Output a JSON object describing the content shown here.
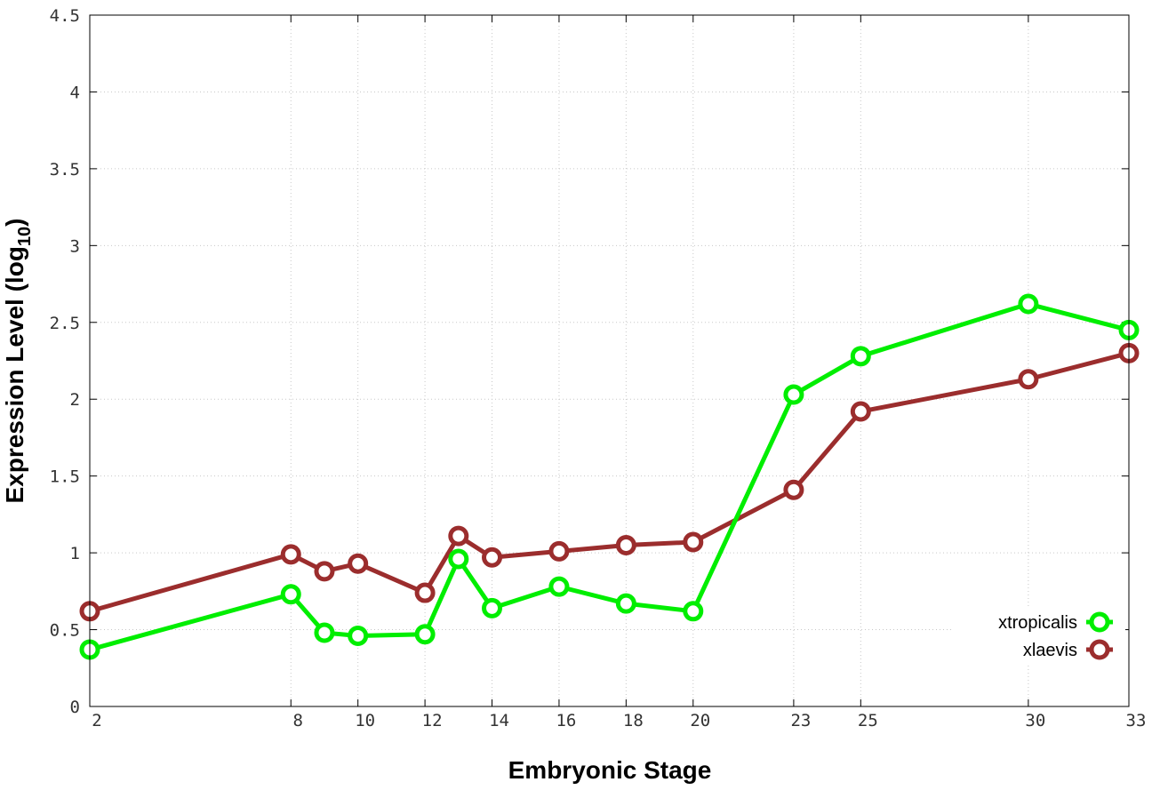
{
  "chart_data": {
    "type": "line",
    "xlabel": "Embryonic Stage",
    "ylabel_main": "Expression Level (log",
    "ylabel_sub": "10",
    "ylabel_close": ")",
    "x_ticks": [
      2,
      8,
      10,
      12,
      14,
      16,
      18,
      20,
      23,
      25,
      30,
      33
    ],
    "y_ticks": [
      "0",
      "0.5",
      "1",
      "1.5",
      "2",
      "2.5",
      "3",
      "3.5",
      "4",
      "4.5"
    ],
    "xlim": [
      2,
      33
    ],
    "ylim": [
      0,
      4.5
    ],
    "grid": true,
    "legend_position": "bottom-right",
    "series": [
      {
        "name": "xtropicalis",
        "color": "#00ee00",
        "x": [
          2,
          8,
          9,
          10,
          12,
          13,
          14,
          16,
          18,
          20,
          23,
          25,
          30,
          33
        ],
        "y": [
          0.37,
          0.73,
          0.48,
          0.46,
          0.47,
          0.96,
          0.64,
          0.78,
          0.67,
          0.62,
          2.03,
          2.28,
          2.62,
          2.45
        ]
      },
      {
        "name": "xlaevis",
        "color": "#9b2d2d",
        "x": [
          2,
          8,
          9,
          10,
          12,
          13,
          14,
          16,
          18,
          20,
          23,
          25,
          30,
          33
        ],
        "y": [
          0.62,
          0.99,
          0.88,
          0.93,
          0.74,
          1.11,
          0.97,
          1.01,
          1.05,
          1.07,
          1.41,
          1.92,
          2.13,
          2.3
        ]
      }
    ]
  }
}
